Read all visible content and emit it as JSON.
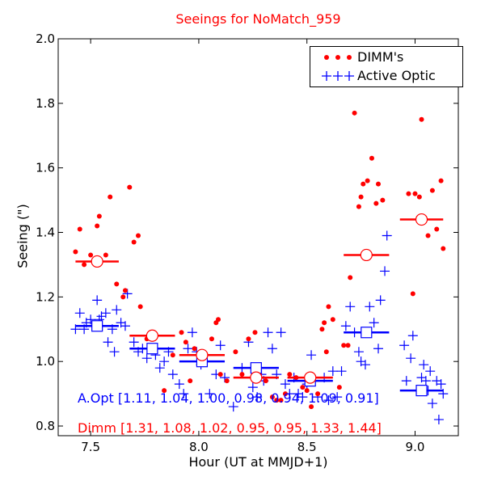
{
  "chart_data": {
    "type": "scatter",
    "title": "Seeings for NoMatch_959",
    "xlabel": "Hour (UT at MMJD+1)",
    "ylabel": "Seeing (\")",
    "xlim": [
      7.35,
      9.2
    ],
    "ylim": [
      0.77,
      2.0
    ],
    "xticks": [
      "7.5",
      "8.0",
      "8.5",
      "9.0"
    ],
    "yticks": [
      "0.8",
      "1.0",
      "1.2",
      "1.4",
      "1.6",
      "1.8",
      "2.0"
    ],
    "grid": false,
    "legend_position": "top-right",
    "colors": {
      "dimm": "#ff0000",
      "optic": "#0000ff"
    },
    "series": [
      {
        "name": "DIMM's",
        "marker": "dot",
        "color": "#ff0000",
        "points": [
          [
            7.43,
            1.34
          ],
          [
            7.45,
            1.41
          ],
          [
            7.47,
            1.3
          ],
          [
            7.5,
            1.33
          ],
          [
            7.53,
            1.42
          ],
          [
            7.54,
            1.45
          ],
          [
            7.57,
            1.33
          ],
          [
            7.59,
            1.51
          ],
          [
            7.62,
            1.24
          ],
          [
            7.65,
            1.2
          ],
          [
            7.66,
            1.22
          ],
          [
            7.68,
            1.54
          ],
          [
            7.7,
            1.37
          ],
          [
            7.72,
            1.39
          ],
          [
            7.73,
            1.17
          ],
          [
            7.76,
            1.07
          ],
          [
            7.79,
            1.08
          ],
          [
            7.8,
            1.05
          ],
          [
            7.84,
            0.91
          ],
          [
            7.88,
            1.02
          ],
          [
            7.92,
            1.09
          ],
          [
            7.94,
            1.06
          ],
          [
            7.96,
            0.94
          ],
          [
            7.98,
            1.04
          ],
          [
            8.02,
            1.01
          ],
          [
            8.06,
            1.07
          ],
          [
            8.08,
            1.12
          ],
          [
            8.09,
            1.13
          ],
          [
            8.1,
            0.96
          ],
          [
            8.13,
            0.94
          ],
          [
            8.17,
            1.03
          ],
          [
            8.2,
            0.96
          ],
          [
            8.23,
            1.07
          ],
          [
            8.26,
            1.09
          ],
          [
            8.28,
            0.96
          ],
          [
            8.31,
            0.94
          ],
          [
            8.34,
            0.89
          ],
          [
            8.36,
            0.88
          ],
          [
            8.38,
            0.88
          ],
          [
            8.4,
            0.9
          ],
          [
            8.42,
            0.96
          ],
          [
            8.45,
            0.95
          ],
          [
            8.48,
            0.92
          ],
          [
            8.5,
            0.91
          ],
          [
            8.52,
            0.86
          ],
          [
            8.55,
            0.9
          ],
          [
            8.57,
            1.1
          ],
          [
            8.58,
            1.12
          ],
          [
            8.59,
            1.03
          ],
          [
            8.6,
            1.17
          ],
          [
            8.62,
            1.13
          ],
          [
            8.65,
            0.92
          ],
          [
            8.67,
            1.05
          ],
          [
            8.69,
            1.05
          ],
          [
            8.7,
            1.26
          ],
          [
            8.72,
            1.77
          ],
          [
            8.74,
            1.48
          ],
          [
            8.75,
            1.51
          ],
          [
            8.76,
            1.55
          ],
          [
            8.78,
            1.56
          ],
          [
            8.8,
            1.63
          ],
          [
            8.82,
            1.49
          ],
          [
            8.83,
            1.55
          ],
          [
            8.85,
            1.5
          ],
          [
            8.97,
            1.52
          ],
          [
            8.99,
            1.21
          ],
          [
            9.0,
            1.52
          ],
          [
            9.02,
            1.51
          ],
          [
            9.03,
            1.75
          ],
          [
            9.06,
            1.39
          ],
          [
            9.08,
            1.53
          ],
          [
            9.1,
            1.41
          ],
          [
            9.12,
            1.56
          ],
          [
            9.13,
            1.35
          ]
        ]
      },
      {
        "name": "Active Optic",
        "marker": "plus",
        "color": "#0000ff",
        "points": [
          [
            7.43,
            1.1
          ],
          [
            7.45,
            1.15
          ],
          [
            7.47,
            1.1
          ],
          [
            7.48,
            1.12
          ],
          [
            7.5,
            1.13
          ],
          [
            7.52,
            1.11
          ],
          [
            7.53,
            1.19
          ],
          [
            7.54,
            1.13
          ],
          [
            7.55,
            1.14
          ],
          [
            7.57,
            1.15
          ],
          [
            7.58,
            1.06
          ],
          [
            7.6,
            1.1
          ],
          [
            7.61,
            1.03
          ],
          [
            7.62,
            1.16
          ],
          [
            7.64,
            1.12
          ],
          [
            7.66,
            1.11
          ],
          [
            7.67,
            1.21
          ],
          [
            7.7,
            1.06
          ],
          [
            7.72,
            1.03
          ],
          [
            7.74,
            1.04
          ],
          [
            7.76,
            1.01
          ],
          [
            7.78,
            1.04
          ],
          [
            7.8,
            1.02
          ],
          [
            7.82,
            0.98
          ],
          [
            7.84,
            1.0
          ],
          [
            7.86,
            1.03
          ],
          [
            7.88,
            0.96
          ],
          [
            7.91,
            0.93
          ],
          [
            7.93,
            0.9
          ],
          [
            7.95,
            1.04
          ],
          [
            7.97,
            1.09
          ],
          [
            7.99,
            1.03
          ],
          [
            8.01,
            0.99
          ],
          [
            8.03,
            1.0
          ],
          [
            8.05,
            0.9
          ],
          [
            8.08,
            0.96
          ],
          [
            8.1,
            1.05
          ],
          [
            8.12,
            0.95
          ],
          [
            8.16,
            0.86
          ],
          [
            8.2,
            0.98
          ],
          [
            8.23,
            1.06
          ],
          [
            8.25,
            0.92
          ],
          [
            8.27,
            0.89
          ],
          [
            8.29,
            0.96
          ],
          [
            8.3,
            0.94
          ],
          [
            8.32,
            1.09
          ],
          [
            8.34,
            1.04
          ],
          [
            8.36,
            0.96
          ],
          [
            8.38,
            1.09
          ],
          [
            8.4,
            0.93
          ],
          [
            8.42,
            0.9
          ],
          [
            8.44,
            0.95
          ],
          [
            8.46,
            0.9
          ],
          [
            8.48,
            0.89
          ],
          [
            8.5,
            0.93
          ],
          [
            8.52,
            1.02
          ],
          [
            8.55,
            0.89
          ],
          [
            8.58,
            0.95
          ],
          [
            8.6,
            0.88
          ],
          [
            8.62,
            0.97
          ],
          [
            8.64,
            0.89
          ],
          [
            8.66,
            0.97
          ],
          [
            8.68,
            1.11
          ],
          [
            8.7,
            1.17
          ],
          [
            8.72,
            1.09
          ],
          [
            8.74,
            1.03
          ],
          [
            8.75,
            1.0
          ],
          [
            8.77,
            0.99
          ],
          [
            8.79,
            1.17
          ],
          [
            8.81,
            1.12
          ],
          [
            8.83,
            1.04
          ],
          [
            8.84,
            1.19
          ],
          [
            8.86,
            1.28
          ],
          [
            8.87,
            1.39
          ],
          [
            8.95,
            1.05
          ],
          [
            8.96,
            0.94
          ],
          [
            8.98,
            1.01
          ],
          [
            8.99,
            1.08
          ],
          [
            9.01,
            0.91
          ],
          [
            9.03,
            0.95
          ],
          [
            9.04,
            0.99
          ],
          [
            9.05,
            0.94
          ],
          [
            9.06,
            0.91
          ],
          [
            9.07,
            0.97
          ],
          [
            9.08,
            0.87
          ],
          [
            9.1,
            0.94
          ],
          [
            9.11,
            0.82
          ],
          [
            9.12,
            0.93
          ],
          [
            9.13,
            0.9
          ]
        ]
      }
    ],
    "bins": [
      {
        "x": [
          7.43,
          7.63
        ],
        "dimm": 1.31,
        "optic": 1.11
      },
      {
        "x": [
          7.68,
          7.89
        ],
        "dimm": 1.08,
        "optic": 1.04
      },
      {
        "x": [
          7.91,
          8.12
        ],
        "dimm": 1.02,
        "optic": 1.0
      },
      {
        "x": [
          8.16,
          8.37
        ],
        "dimm": 0.95,
        "optic": 0.98
      },
      {
        "x": [
          8.41,
          8.62
        ],
        "dimm": 0.95,
        "optic": 0.94
      },
      {
        "x": [
          8.67,
          8.88
        ],
        "dimm": 1.33,
        "optic": 1.09
      },
      {
        "x": [
          8.93,
          9.13
        ],
        "dimm": 1.44,
        "optic": 0.91
      }
    ],
    "annotations": {
      "optic": "A.Opt [1.11, 1.04, 1.00, 0.98, 0.94, 1.09, 0.91]",
      "dimm": "Dimm [1.31, 1.08, 1.02, 0.95, 0.95, 1.33, 1.44]"
    }
  }
}
